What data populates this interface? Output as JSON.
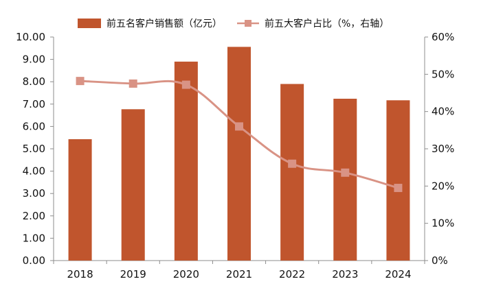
{
  "colors": {
    "bar": "#C0552D",
    "line": "#D99385",
    "axis": "#8C8C8C",
    "text": "#111111"
  },
  "legend": {
    "bar_label": "前五名客户销售额（亿元）",
    "line_label": "前五大客户占比（%，右轴）"
  },
  "chart_data": {
    "type": "bar",
    "categories": [
      "2018",
      "2019",
      "2020",
      "2021",
      "2022",
      "2023",
      "2024"
    ],
    "series": [
      {
        "name": "前五名客户销售额（亿元）",
        "type": "bar",
        "axis": "left",
        "values": [
          5.43,
          6.77,
          8.9,
          9.56,
          7.9,
          7.24,
          7.17
        ]
      },
      {
        "name": "前五大客户占比（%，右轴）",
        "type": "line",
        "axis": "right",
        "marker": "square",
        "values": [
          48.2,
          47.5,
          47.2,
          36.0,
          26.0,
          23.6,
          19.5
        ]
      }
    ],
    "y_left": {
      "range": [
        0,
        10
      ],
      "ticks": [
        "0.00",
        "1.00",
        "2.00",
        "3.00",
        "4.00",
        "5.00",
        "6.00",
        "7.00",
        "8.00",
        "9.00",
        "10.00"
      ]
    },
    "y_right": {
      "range": [
        0,
        60
      ],
      "ticks": [
        "0%",
        "10%",
        "20%",
        "30%",
        "40%",
        "50%",
        "60%"
      ]
    },
    "grid": false,
    "legend_position": "top"
  }
}
